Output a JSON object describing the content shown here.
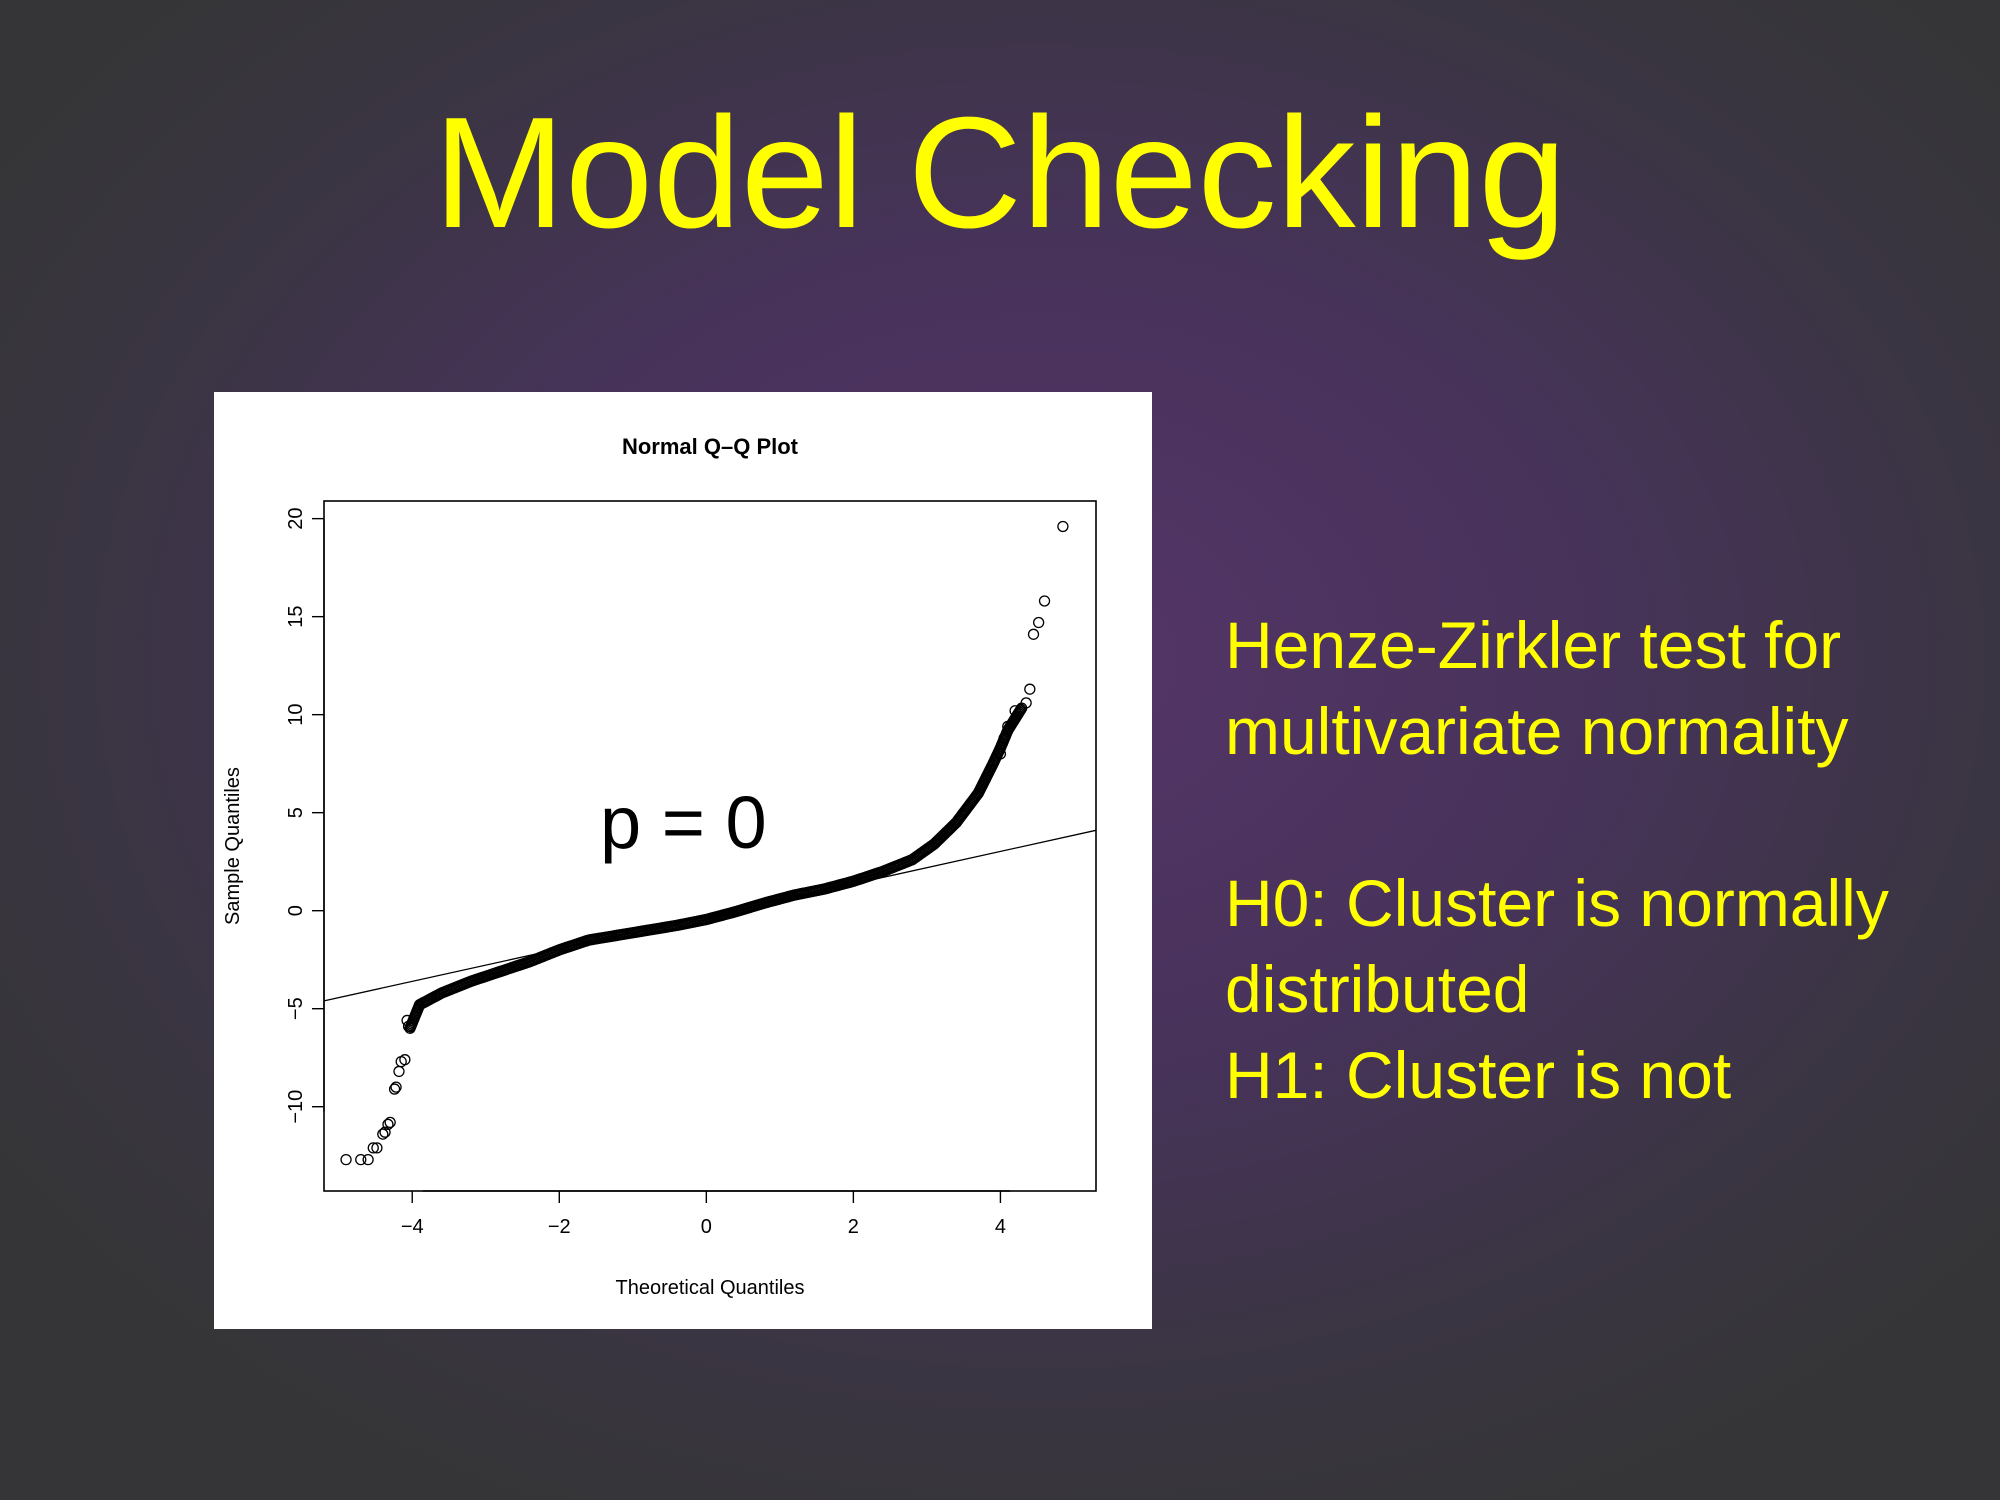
{
  "slide": {
    "title": "Model Checking",
    "p_label": "p = 0",
    "test_lines": [
      "Henze-Zirkler test for",
      "multivariate normality"
    ],
    "hypothesis_lines": [
      "H0: Cluster is normally",
      "distributed",
      "H1: Cluster is not"
    ],
    "colors": {
      "title": "#ffff00",
      "text": "#ffff00",
      "panel": "#ffffff",
      "points": "#000000"
    }
  },
  "chart_data": {
    "type": "scatter",
    "title": "Normal Q–Q Plot",
    "xlabel": "Theoretical Quantiles",
    "ylabel": "Sample Quantiles",
    "xlim": [
      -5.2,
      5.3
    ],
    "ylim": [
      -14.3,
      20.9
    ],
    "x_ticks": [
      -4,
      -2,
      0,
      2,
      4
    ],
    "x_tick_labels": [
      "−4",
      "−2",
      "0",
      "2",
      "4"
    ],
    "y_ticks": [
      -10,
      -5,
      0,
      5,
      10,
      15,
      20
    ],
    "y_tick_labels": [
      "−10",
      "−5",
      "0",
      "5",
      "10",
      "15",
      "20"
    ],
    "marker": "open-circle",
    "reference_line": {
      "from": [
        -5.2,
        -4.6
      ],
      "to": [
        5.3,
        4.1
      ]
    },
    "curve_points": [
      [
        -4.03,
        -6.0
      ],
      [
        -3.9,
        -4.8
      ],
      [
        -3.6,
        -4.2
      ],
      [
        -3.2,
        -3.6
      ],
      [
        -2.8,
        -3.1
      ],
      [
        -2.4,
        -2.6
      ],
      [
        -2.0,
        -2.0
      ],
      [
        -1.6,
        -1.5
      ],
      [
        -1.2,
        -1.25
      ],
      [
        -0.8,
        -1.0
      ],
      [
        -0.4,
        -0.75
      ],
      [
        0.0,
        -0.45
      ],
      [
        0.4,
        -0.05
      ],
      [
        0.8,
        0.4
      ],
      [
        1.2,
        0.8
      ],
      [
        1.6,
        1.1
      ],
      [
        2.0,
        1.5
      ],
      [
        2.4,
        2.0
      ],
      [
        2.8,
        2.6
      ],
      [
        3.1,
        3.4
      ],
      [
        3.4,
        4.5
      ],
      [
        3.7,
        6.0
      ],
      [
        3.9,
        7.5
      ],
      [
        4.0,
        8.3
      ],
      [
        4.1,
        9.2
      ],
      [
        4.2,
        9.8
      ],
      [
        4.3,
        10.4
      ]
    ],
    "tail_points_low": [
      [
        -4.07,
        -5.6
      ],
      [
        -4.05,
        -5.9
      ],
      [
        -4.1,
        -7.6
      ],
      [
        -4.15,
        -7.7
      ],
      [
        -4.18,
        -8.2
      ],
      [
        -4.22,
        -9.0
      ],
      [
        -4.24,
        -9.1
      ],
      [
        -4.3,
        -10.8
      ],
      [
        -4.33,
        -10.9
      ],
      [
        -4.37,
        -11.3
      ],
      [
        -4.4,
        -11.4
      ],
      [
        -4.48,
        -12.1
      ],
      [
        -4.53,
        -12.1
      ],
      [
        -4.6,
        -12.7
      ],
      [
        -4.7,
        -12.7
      ],
      [
        -4.9,
        -12.7
      ]
    ],
    "tail_points_high": [
      [
        4.0,
        8.0
      ],
      [
        4.05,
        8.8
      ],
      [
        4.1,
        9.4
      ],
      [
        4.2,
        10.2
      ],
      [
        4.35,
        10.6
      ],
      [
        4.4,
        11.3
      ],
      [
        4.45,
        14.1
      ],
      [
        4.52,
        14.7
      ],
      [
        4.6,
        15.8
      ],
      [
        4.85,
        19.6
      ]
    ]
  }
}
